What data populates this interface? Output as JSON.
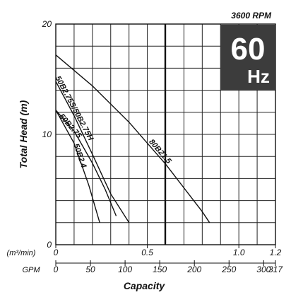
{
  "chart_data": {
    "type": "line",
    "header": {
      "rpm": "3600 RPM",
      "freq_value": "60",
      "freq_unit": "Hz"
    },
    "xlabel": "Capacity",
    "ylabel": "Total Head (m)",
    "x_unit": "(m³/min)",
    "gpm_unit": "GPM",
    "xlim": [
      0,
      1.2
    ],
    "ylim": [
      0,
      20
    ],
    "m3_ticks": [
      "0",
      "0.5",
      "1.0",
      "1.2"
    ],
    "y_ticks": [
      "0",
      "10",
      "20"
    ],
    "gpm_ticks": [
      {
        "label": "0",
        "x": 0
      },
      {
        "label": "50",
        "x": 0.1893
      },
      {
        "label": "100",
        "x": 0.3785
      },
      {
        "label": "150",
        "x": 0.5678
      },
      {
        "label": "200",
        "x": 0.7571
      },
      {
        "label": "250",
        "x": 0.9464
      },
      {
        "label": "300",
        "x": 1.1356
      },
      {
        "label": "317",
        "x": 1.2
      }
    ],
    "series": [
      {
        "name": "80B21.5",
        "x": [
          0,
          0.2,
          0.4,
          0.6,
          0.8,
          0.84
        ],
        "y": [
          17.2,
          14.4,
          11.1,
          7.3,
          3.0,
          2.0
        ]
      },
      {
        "name": "50B2.75S/50B2.75H",
        "x": [
          0,
          0.1,
          0.2,
          0.3,
          0.4
        ],
        "y": [
          14.8,
          11.7,
          8.2,
          4.6,
          2.0
        ]
      },
      {
        "name": "50B2.75",
        "x": [
          0,
          0.1,
          0.2,
          0.27,
          0.33
        ],
        "y": [
          12.2,
          10.3,
          7.4,
          5.0,
          2.6
        ]
      },
      {
        "name": "50B2.4",
        "x": [
          0,
          0.1,
          0.18,
          0.24
        ],
        "y": [
          12.2,
          9.2,
          5.4,
          2.0
        ]
      }
    ],
    "grid": true
  }
}
